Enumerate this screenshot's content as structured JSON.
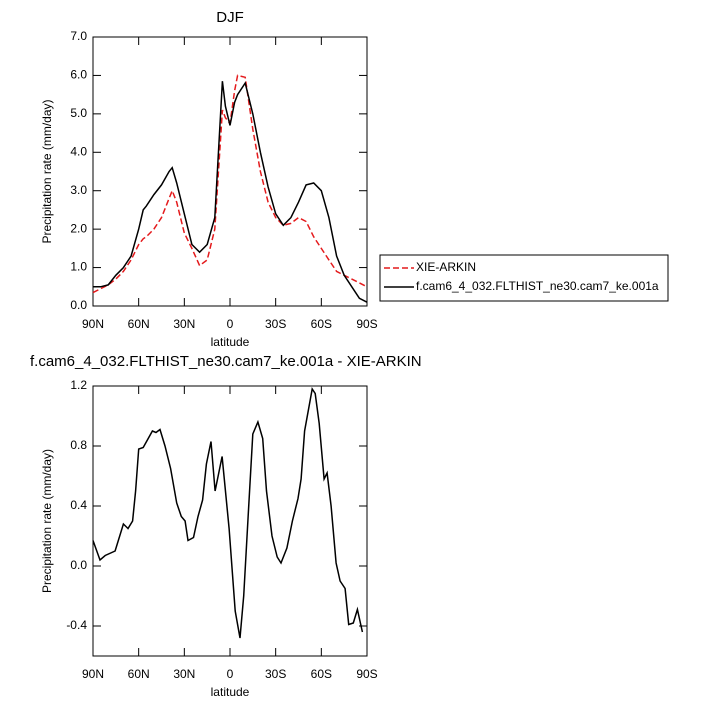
{
  "chart_data": [
    {
      "type": "line",
      "title": "DJF",
      "ylabel": "Precipitation rate (mm/day)",
      "xlabel": "latitude",
      "x": [
        90,
        85,
        80,
        75,
        70,
        65,
        60,
        57,
        55,
        50,
        45,
        40,
        38,
        35,
        30,
        25,
        20,
        15,
        10,
        5,
        3,
        0,
        -3,
        -5,
        -10,
        -15,
        -20,
        -25,
        -30,
        -35,
        -40,
        -45,
        -50,
        -55,
        -60,
        -65,
        -70,
        -75,
        -80,
        -85,
        -90
      ],
      "series": [
        {
          "name": "XIE-ARKIN",
          "color": "#e41a1c",
          "dashed": true,
          "values": [
            0.35,
            0.45,
            0.55,
            0.7,
            0.9,
            1.2,
            1.6,
            1.75,
            1.8,
            2.0,
            2.3,
            2.8,
            3.0,
            2.7,
            1.9,
            1.5,
            1.05,
            1.2,
            2.0,
            5.1,
            4.9,
            4.75,
            5.6,
            6.0,
            5.95,
            4.6,
            3.5,
            2.7,
            2.3,
            2.1,
            2.15,
            2.3,
            2.2,
            1.8,
            1.5,
            1.2,
            0.9,
            0.8,
            0.7,
            0.6,
            0.5
          ]
        },
        {
          "name": "f.cam6_4_032.FLTHIST_ne30.cam7_ke.001a",
          "color": "#000000",
          "dashed": false,
          "values": [
            0.5,
            0.5,
            0.55,
            0.8,
            1.0,
            1.3,
            2.0,
            2.5,
            2.6,
            2.9,
            3.15,
            3.5,
            3.6,
            3.2,
            2.4,
            1.6,
            1.4,
            1.6,
            2.3,
            5.85,
            5.2,
            4.7,
            5.3,
            5.5,
            5.8,
            5.0,
            4.0,
            3.1,
            2.4,
            2.1,
            2.3,
            2.7,
            3.15,
            3.2,
            3.0,
            2.3,
            1.3,
            0.8,
            0.5,
            0.2,
            0.1
          ]
        }
      ],
      "xlim": [
        90,
        -90
      ],
      "xticks": [
        {
          "value": 90,
          "label": "90N"
        },
        {
          "value": 60,
          "label": "60N"
        },
        {
          "value": 30,
          "label": "30N"
        },
        0,
        {
          "value": -30,
          "label": "30S"
        },
        {
          "value": -60,
          "label": "60S"
        },
        {
          "value": -90,
          "label": "90S"
        }
      ],
      "ylim": [
        0,
        7
      ],
      "yticks": [
        {
          "value": 0,
          "label": "0.0"
        },
        {
          "value": 1,
          "label": "1.0"
        },
        {
          "value": 2,
          "label": "2.0"
        },
        {
          "value": 3,
          "label": "3.0"
        },
        {
          "value": 4,
          "label": "4.0"
        },
        {
          "value": 5,
          "label": "5.0"
        },
        {
          "value": 6,
          "label": "6.0"
        },
        {
          "value": 7,
          "label": "7.0"
        }
      ],
      "legend": "right"
    },
    {
      "type": "line",
      "title": "f.cam6_4_032.FLTHIST_ne30.cam7_ke.001a - XIE-ARKIN",
      "ylabel": "Precipitation rate (mm/day)",
      "xlabel": "latitude",
      "x": [
        90,
        85.4,
        82,
        75.5,
        70,
        67,
        64,
        62,
        60,
        57,
        51,
        48.6,
        46,
        42.7,
        39,
        35,
        32,
        29.5,
        27.6,
        24,
        21,
        18,
        15.5,
        12.5,
        9.8,
        5.2,
        0.6,
        -3.4,
        -6.6,
        -9,
        -12,
        -15,
        -18.3,
        -21.5,
        -24,
        -27.6,
        -31,
        -33.5,
        -37.4,
        -41,
        -44.7,
        -46.7,
        -49,
        -54,
        -56,
        -58.6,
        -61.8,
        -63.8,
        -66.4,
        -69.7,
        -72.3,
        -75.6,
        -78,
        -81,
        -83.7,
        -87
      ],
      "series": [
        {
          "color": "#000000",
          "dashed": false,
          "values": [
            0.17,
            0.04,
            0.07,
            0.1,
            0.28,
            0.25,
            0.3,
            0.5,
            0.78,
            0.79,
            0.9,
            0.89,
            0.91,
            0.8,
            0.65,
            0.42,
            0.33,
            0.3,
            0.17,
            0.19,
            0.33,
            0.44,
            0.68,
            0.83,
            0.5,
            0.73,
            0.25,
            -0.3,
            -0.48,
            -0.2,
            0.35,
            0.88,
            0.96,
            0.85,
            0.5,
            0.2,
            0.06,
            0.02,
            0.12,
            0.3,
            0.45,
            0.58,
            0.9,
            1.18,
            1.15,
            0.95,
            0.58,
            0.62,
            0.4,
            0.02,
            -0.1,
            -0.15,
            -0.39,
            -0.38,
            -0.29,
            -0.44
          ]
        }
      ],
      "xlim": [
        90,
        -90
      ],
      "xticks": [
        {
          "value": 90,
          "label": "90N"
        },
        {
          "value": 60,
          "label": "60N"
        },
        {
          "value": 30,
          "label": "30N"
        },
        0,
        {
          "value": -30,
          "label": "30S"
        },
        {
          "value": -60,
          "label": "60S"
        },
        {
          "value": -90,
          "label": "90S"
        }
      ],
      "ylim": [
        -0.6,
        1.2
      ],
      "yticks": [
        -0.4,
        {
          "value": 0,
          "label": "0.0"
        },
        0.4,
        0.8,
        1.2
      ]
    }
  ]
}
